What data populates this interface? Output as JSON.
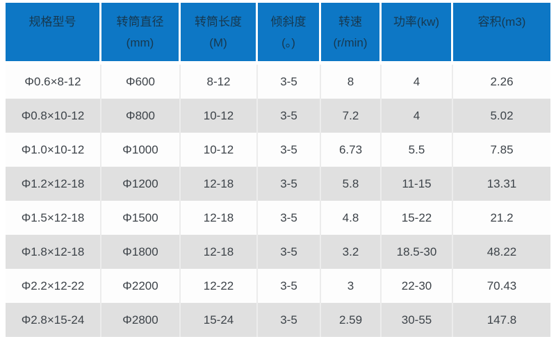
{
  "colors": {
    "header_bg": "#0d77c5",
    "header_text": "#17384f",
    "row_even_bg": "#e0e0e0",
    "row_odd_bg": "#fdfdfd",
    "body_text": "#3d4349",
    "cell_border": "#ececec",
    "page_bg": "#ffffff"
  },
  "chart_data": {
    "type": "table",
    "title": "",
    "columns": [
      "规格型号",
      "转筒直径\n(mm)",
      "转筒长度\n(M)",
      "倾斜度\n(。)",
      "转速\n(r/min)",
      "功率(kw)",
      "容积(m3)"
    ],
    "rows": [
      [
        "Φ0.6×8-12",
        "Φ600",
        "8-12",
        "3-5",
        "8",
        "4",
        "2.26"
      ],
      [
        "Φ0.8×10-12",
        "Φ800",
        "10-12",
        "3-5",
        "7.2",
        "4",
        "5.02"
      ],
      [
        "Φ1.0×10-12",
        "Φ1000",
        "10-12",
        "3-5",
        "6.73",
        "5.5",
        "7.85"
      ],
      [
        "Φ1.2×12-18",
        "Φ1200",
        "12-18",
        "3-5",
        "5.8",
        "11-15",
        "13.31"
      ],
      [
        "Φ1.5×12-18",
        "Φ1500",
        "12-18",
        "3-5",
        "4.8",
        "15-22",
        "21.2"
      ],
      [
        "Φ1.8×12-18",
        "Φ1800",
        "12-18",
        "3-5",
        "3.2",
        "18.5-30",
        "48.22"
      ],
      [
        "Φ2.2×12-22",
        "Φ2200",
        "12-22",
        "3-5",
        "3",
        "22-30",
        "70.43"
      ],
      [
        "Φ2.8×15-24",
        "Φ2800",
        "15-24",
        "3-5",
        "2.59",
        "30-55",
        "147.8"
      ]
    ]
  }
}
